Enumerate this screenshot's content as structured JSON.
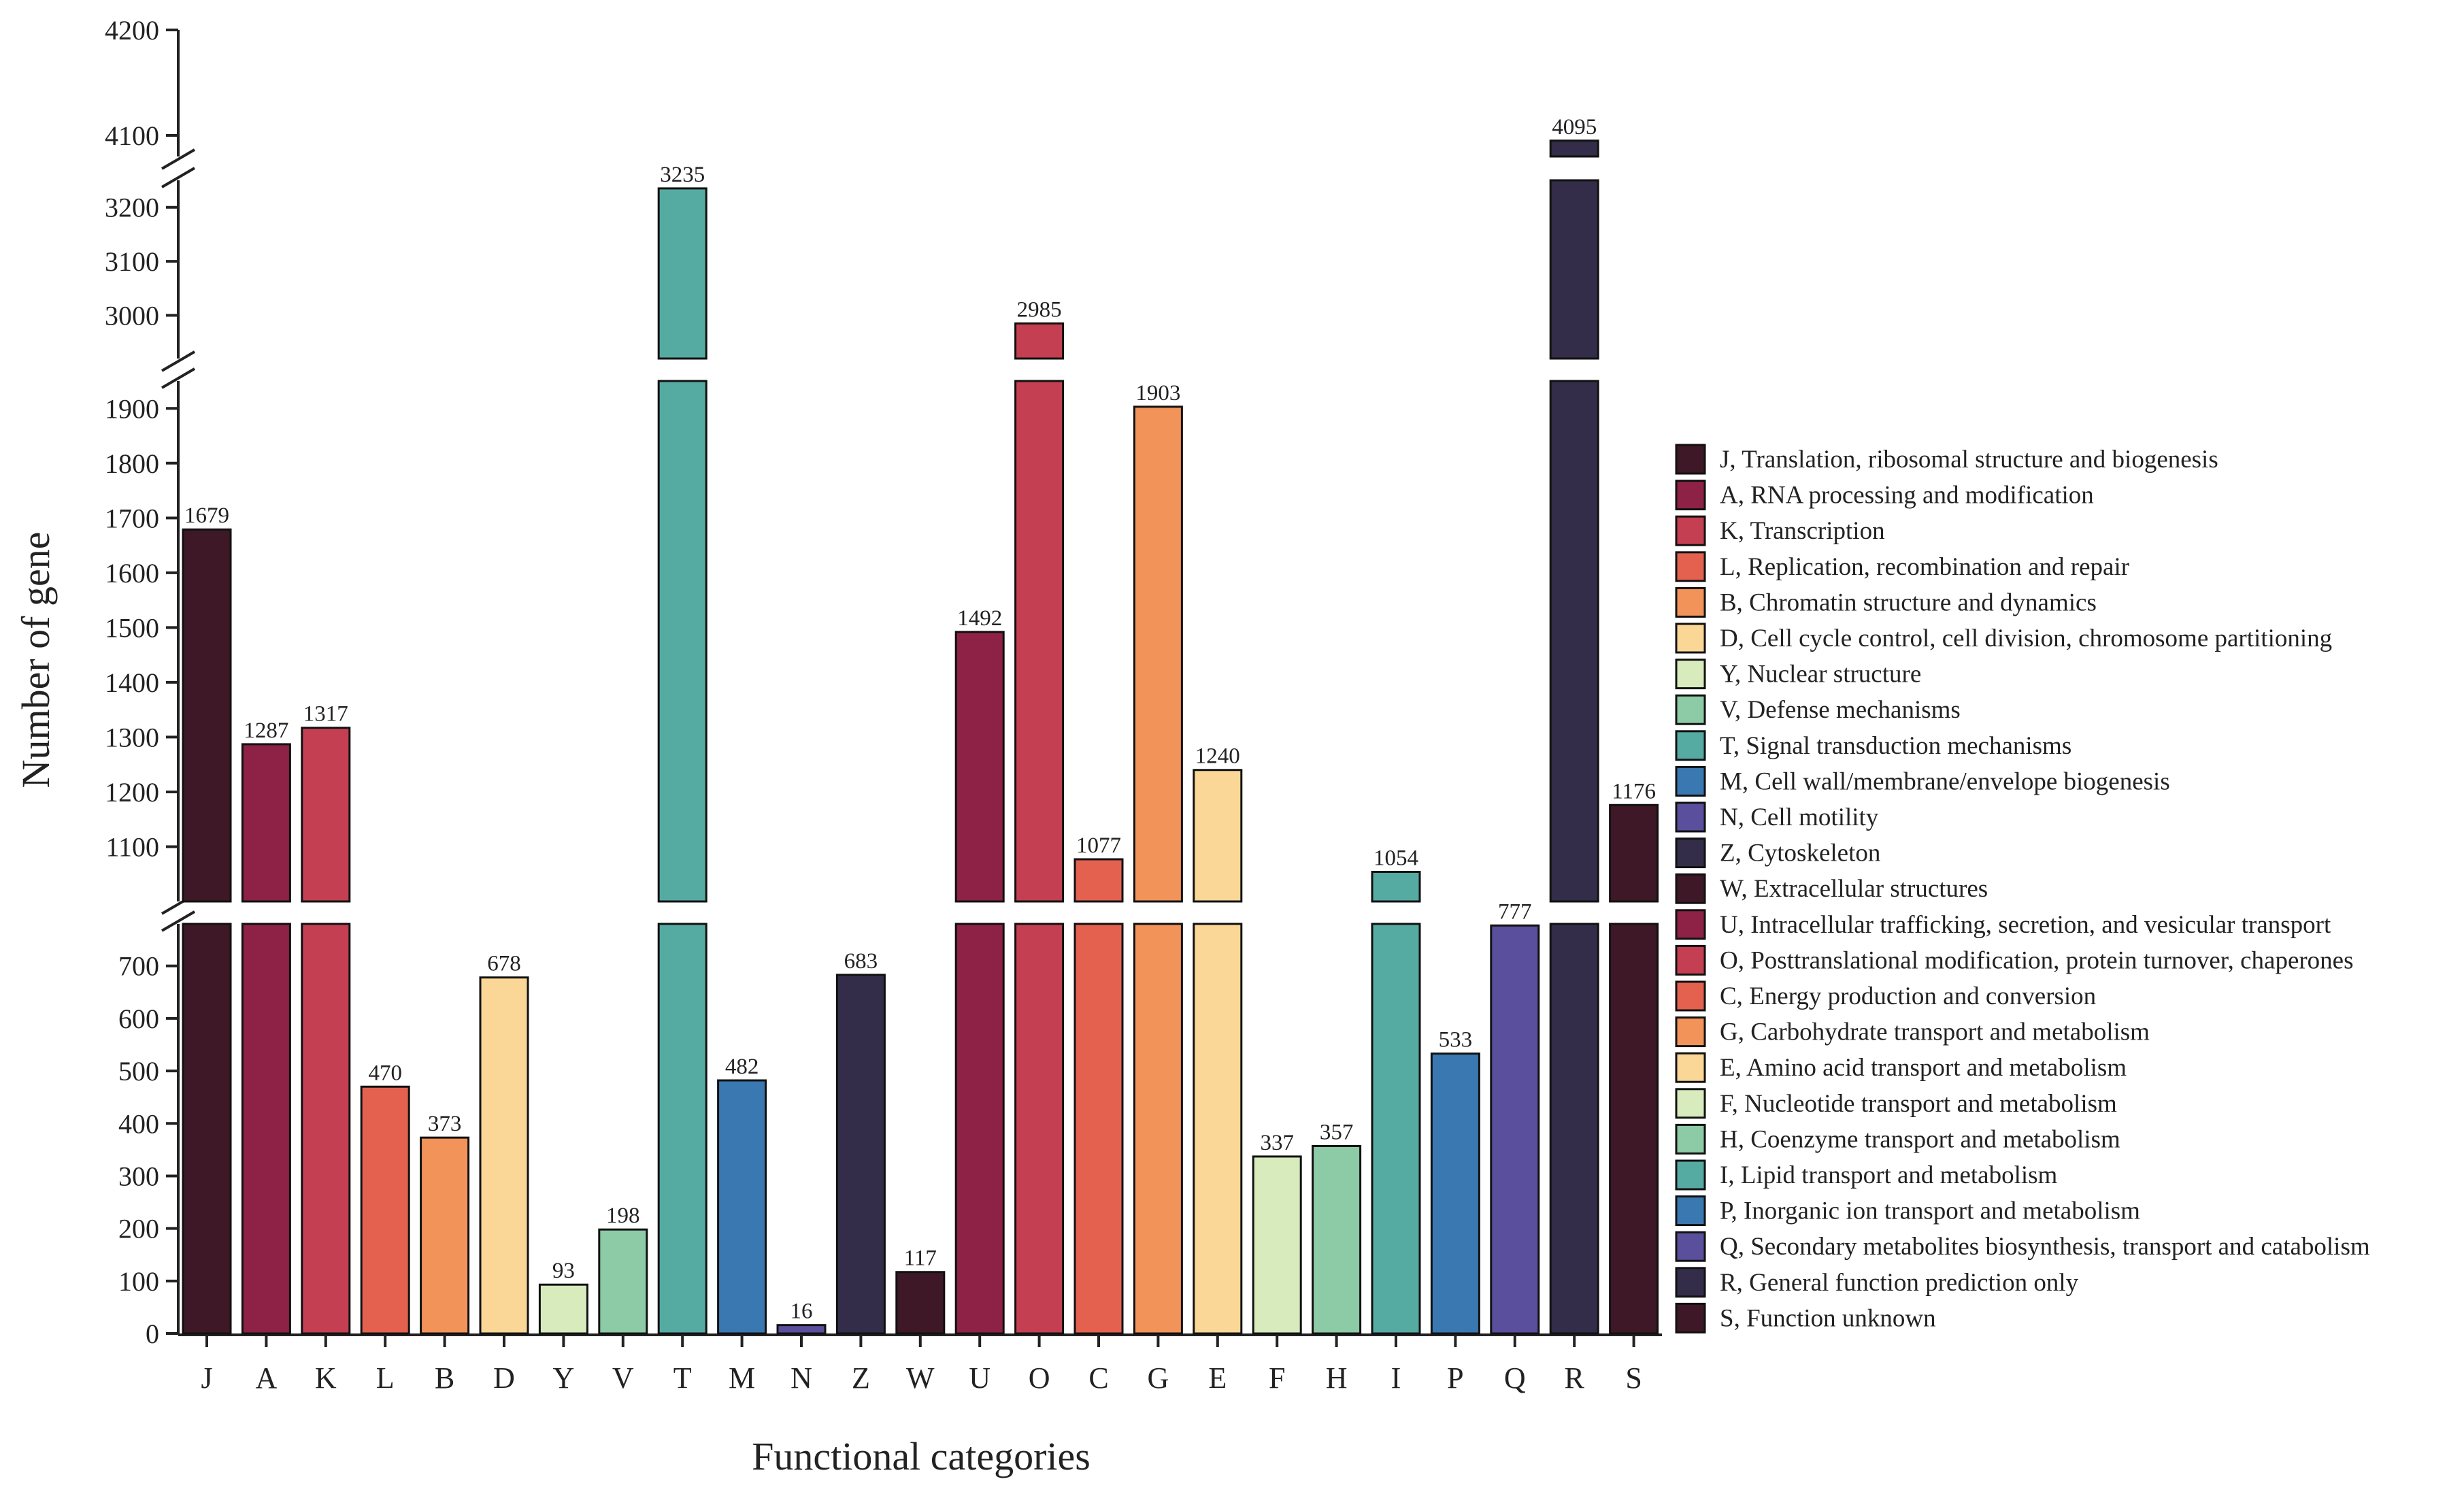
{
  "chart_data": {
    "type": "bar",
    "title": "",
    "xlabel": "Functional categories",
    "ylabel": "Number of gene",
    "y_axis_breaks": [
      [
        780,
        1000
      ],
      [
        1950,
        2920
      ],
      [
        3250,
        4080
      ]
    ],
    "ylim": [
      0,
      4200
    ],
    "y_ticks": [
      0,
      100,
      200,
      300,
      400,
      500,
      600,
      700,
      1100,
      1200,
      1300,
      1400,
      1500,
      1600,
      1700,
      1800,
      1900,
      3000,
      3100,
      3200,
      4100,
      4200
    ],
    "categories": [
      "J",
      "A",
      "K",
      "L",
      "B",
      "D",
      "Y",
      "V",
      "T",
      "M",
      "N",
      "Z",
      "W",
      "U",
      "O",
      "C",
      "G",
      "E",
      "F",
      "H",
      "I",
      "P",
      "Q",
      "R",
      "S"
    ],
    "values": [
      1679,
      1287,
      1317,
      470,
      373,
      678,
      93,
      198,
      3235,
      482,
      16,
      683,
      117,
      1492,
      2985,
      1077,
      1903,
      1240,
      337,
      357,
      1054,
      533,
      777,
      4095,
      1176
    ],
    "colors": [
      "#3e1826",
      "#8e2146",
      "#c43f51",
      "#e46150",
      "#f29359",
      "#fad797",
      "#d7ebbd",
      "#8dcaa6",
      "#55aba2",
      "#3a78b2",
      "#5a4f9c",
      "#342d49",
      "#3e1826",
      "#8e2146",
      "#c43f51",
      "#e46150",
      "#f29359",
      "#fad797",
      "#d7ebbd",
      "#8dcaa6",
      "#55aba2",
      "#3a78b2",
      "#5a4f9c",
      "#342d49",
      "#3e1826"
    ],
    "legend_position": "right",
    "legend": [
      {
        "label": "J, Translation, ribosomal structure and biogenesis",
        "color": "#3e1826"
      },
      {
        "label": "A, RNA processing and modification",
        "color": "#8e2146"
      },
      {
        "label": "K, Transcription",
        "color": "#c43f51"
      },
      {
        "label": "L, Replication, recombination and repair",
        "color": "#e46150"
      },
      {
        "label": "B, Chromatin structure and dynamics",
        "color": "#f29359"
      },
      {
        "label": "D, Cell cycle control, cell division, chromosome partitioning",
        "color": "#fad797"
      },
      {
        "label": "Y, Nuclear structure",
        "color": "#d7ebbd"
      },
      {
        "label": "V, Defense mechanisms",
        "color": "#8dcaa6"
      },
      {
        "label": "T, Signal transduction mechanisms",
        "color": "#55aba2"
      },
      {
        "label": "M, Cell wall/membrane/envelope biogenesis",
        "color": "#3a78b2"
      },
      {
        "label": "N, Cell motility",
        "color": "#5a4f9c"
      },
      {
        "label": "Z, Cytoskeleton",
        "color": "#342d49"
      },
      {
        "label": "W, Extracellular structures",
        "color": "#3e1826"
      },
      {
        "label": "U, Intracellular trafficking, secretion, and vesicular transport",
        "color": "#8e2146"
      },
      {
        "label": "O, Posttranslational modification, protein turnover, chaperones",
        "color": "#c43f51"
      },
      {
        "label": "C, Energy production and conversion",
        "color": "#e46150"
      },
      {
        "label": "G, Carbohydrate transport and metabolism",
        "color": "#f29359"
      },
      {
        "label": "E, Amino acid transport and metabolism",
        "color": "#fad797"
      },
      {
        "label": "F, Nucleotide transport and metabolism",
        "color": "#d7ebbd"
      },
      {
        "label": "H, Coenzyme transport and metabolism",
        "color": "#8dcaa6"
      },
      {
        "label": "I, Lipid transport and metabolism",
        "color": "#55aba2"
      },
      {
        "label": "P, Inorganic ion transport and metabolism",
        "color": "#3a78b2"
      },
      {
        "label": "Q, Secondary metabolites biosynthesis, transport and catabolism",
        "color": "#5a4f9c"
      },
      {
        "label": "R, General function prediction only",
        "color": "#342d49"
      },
      {
        "label": "S, Function unknown",
        "color": "#3e1826"
      }
    ]
  }
}
